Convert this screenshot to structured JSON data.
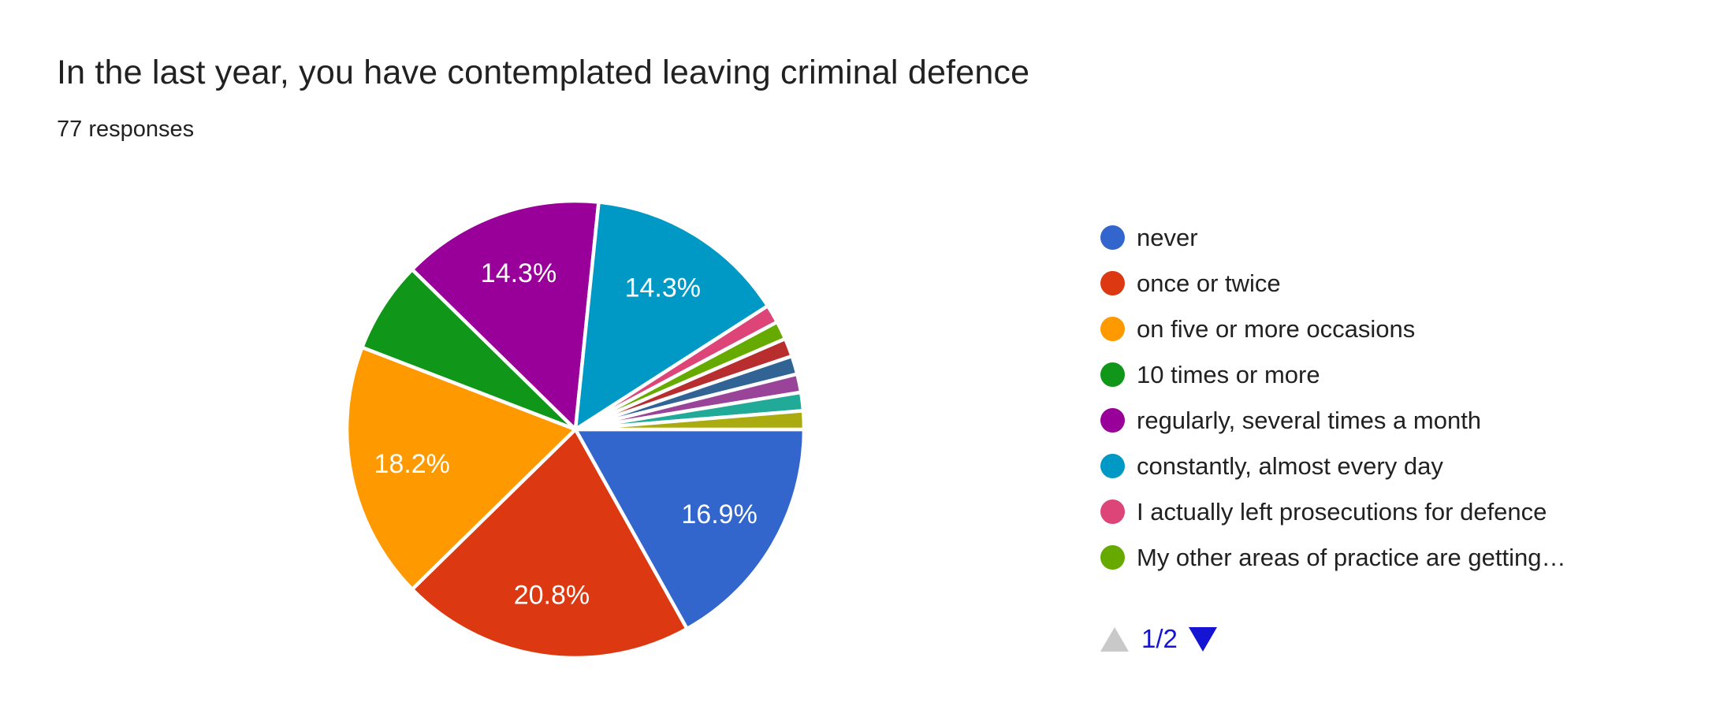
{
  "header": {
    "title": "In the last year, you have contemplated leaving criminal defence",
    "responses": "77 responses"
  },
  "chart_data": {
    "type": "pie",
    "title": "In the last year, you have contemplated leaving criminal defence",
    "subtitle": "77 responses",
    "start_angle_deg": 90,
    "direction": "clockwise",
    "legend_position": "right",
    "slice_label_radius_ratio": 0.73,
    "slices": [
      {
        "name": "never",
        "percent": 16.9,
        "label": "16.9%",
        "color": "#3366CC"
      },
      {
        "name": "once or twice",
        "percent": 20.8,
        "label": "20.8%",
        "color": "#DC3912"
      },
      {
        "name": "on five or more occasions",
        "percent": 18.2,
        "label": "18.2%",
        "color": "#FF9900"
      },
      {
        "name": "10 times or more",
        "percent": 6.5,
        "label": "",
        "color": "#109618"
      },
      {
        "name": "regularly, several times a month",
        "percent": 14.3,
        "label": "14.3%",
        "color": "#990099"
      },
      {
        "name": "constantly, almost every day",
        "percent": 14.3,
        "label": "14.3%",
        "color": "#0099C6"
      },
      {
        "name": "I actually left prosecutions for defence",
        "percent": 1.3,
        "label": "",
        "color": "#DD4477"
      },
      {
        "name": "My other areas of practice are getting…",
        "percent": 1.3,
        "label": "",
        "color": "#66AA00"
      },
      {
        "name": "",
        "percent": 1.3,
        "label": "",
        "color": "#B82E2E"
      },
      {
        "name": "",
        "percent": 1.3,
        "label": "",
        "color": "#316395"
      },
      {
        "name": "",
        "percent": 1.3,
        "label": "",
        "color": "#994499"
      },
      {
        "name": "",
        "percent": 1.3,
        "label": "",
        "color": "#22AA99"
      },
      {
        "name": "",
        "percent": 1.3,
        "label": "",
        "color": "#AAAA11"
      }
    ]
  },
  "legend": {
    "items": [
      {
        "label": "never",
        "color": "#3366CC"
      },
      {
        "label": "once or twice",
        "color": "#DC3912"
      },
      {
        "label": "on five or more occasions",
        "color": "#FF9900"
      },
      {
        "label": "10 times or more",
        "color": "#109618"
      },
      {
        "label": "regularly, several times a month",
        "color": "#990099"
      },
      {
        "label": "constantly, almost every day",
        "color": "#0099C6"
      },
      {
        "label": "I actually left prosecutions for defence",
        "color": "#DD4477"
      },
      {
        "label": "My other areas of practice are getting…",
        "color": "#66AA00"
      }
    ]
  },
  "pagination": {
    "page_label": "1/2",
    "prev_disabled": true,
    "up_arrow_color": "#C9C9C9",
    "down_arrow_color": "#1414D2",
    "text_color": "#1414D2"
  },
  "colors": {
    "background": "#FFFFFF",
    "title_text": "#212121",
    "legend_text": "#212121",
    "slice_label_text": "#FFFFFF",
    "slice_border": "#FFFFFF"
  }
}
